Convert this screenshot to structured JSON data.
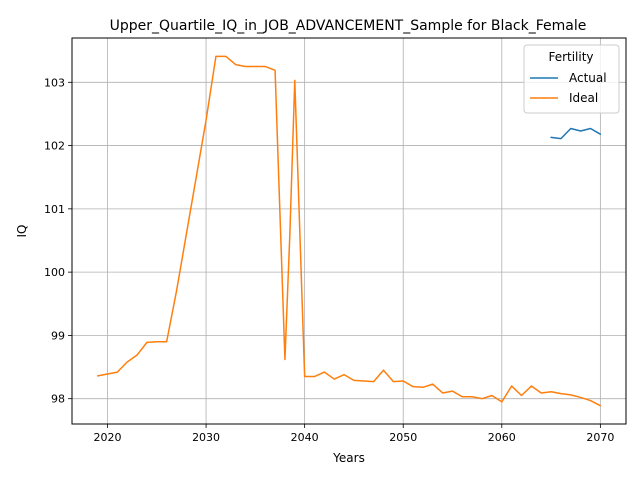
{
  "chart_data": {
    "type": "line",
    "title": "Upper_Quartile_IQ_in_JOB_ADVANCEMENT_Sample for Black_Female",
    "xlabel": "Years",
    "ylabel": "IQ",
    "xlim": [
      2016.4,
      2072.6
    ],
    "ylim": [
      97.6,
      103.7
    ],
    "xticks": [
      2020,
      2030,
      2040,
      2050,
      2060,
      2070
    ],
    "yticks": [
      98,
      99,
      100,
      101,
      102,
      103
    ],
    "grid": true,
    "legend": {
      "title": "Fertility",
      "position": "top-right"
    },
    "series": [
      {
        "name": "Actual",
        "color": "#1f77b4",
        "x": [
          2065,
          2066,
          2067,
          2068,
          2069,
          2070
        ],
        "y": [
          102.13,
          102.11,
          102.27,
          102.23,
          102.27,
          102.18
        ]
      },
      {
        "name": "Ideal",
        "color": "#ff7f0e",
        "x": [
          2019,
          2020,
          2021,
          2022,
          2023,
          2024,
          2025,
          2026,
          2027,
          2028,
          2029,
          2030,
          2031,
          2032,
          2033,
          2034,
          2035,
          2036,
          2037,
          2038,
          2038.5,
          2039,
          2040,
          2041,
          2042,
          2043,
          2044,
          2045,
          2046,
          2047,
          2048,
          2049,
          2050,
          2051,
          2052,
          2053,
          2054,
          2055,
          2056,
          2057,
          2058,
          2059,
          2060,
          2061,
          2062,
          2063,
          2064,
          2065,
          2066,
          2067,
          2068,
          2069,
          2070
        ],
        "y": [
          98.36,
          98.39,
          98.42,
          98.58,
          98.69,
          98.89,
          98.9,
          98.9,
          99.7,
          100.6,
          101.5,
          102.4,
          103.41,
          103.41,
          103.28,
          103.25,
          103.25,
          103.25,
          103.19,
          98.62,
          100.6,
          103.03,
          98.35,
          98.35,
          98.42,
          98.31,
          98.38,
          98.29,
          98.28,
          98.27,
          98.45,
          98.27,
          98.28,
          98.19,
          98.18,
          98.23,
          98.09,
          98.12,
          98.03,
          98.03,
          98.0,
          98.05,
          97.95,
          98.2,
          98.05,
          98.2,
          98.09,
          98.11,
          98.08,
          98.06,
          98.02,
          97.97,
          97.89
        ]
      }
    ]
  }
}
